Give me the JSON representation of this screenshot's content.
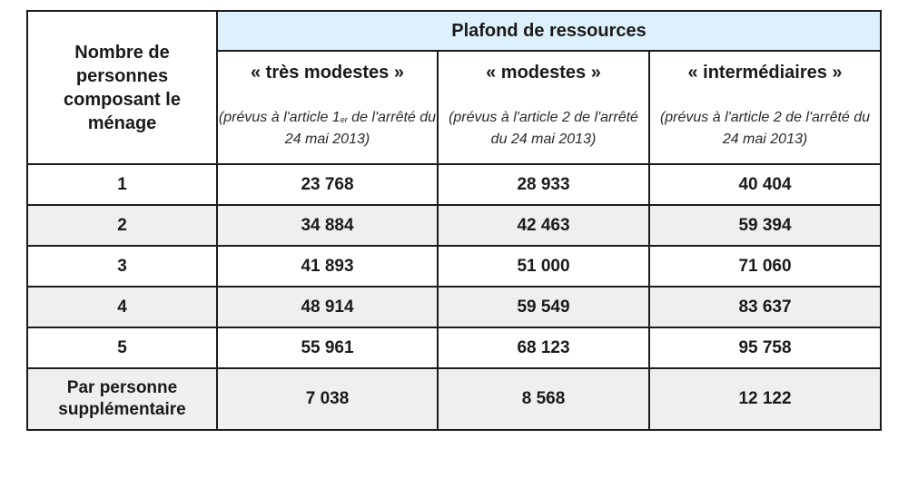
{
  "table": {
    "group_header": "Plafond de ressources",
    "row_header": "Nombre de personnes composant le ménage",
    "categories": [
      {
        "name": "« très modestes »",
        "ref_before_sup": "(prévus à l'article 1",
        "ref_sup": "er",
        "ref_after_sup": " de l'arrêté du 24 mai 2013)"
      },
      {
        "name": "« modestes »",
        "ref_before_sup": "(prévus à l'article 2 de l'arrêté du 24 mai 2013)",
        "ref_sup": "",
        "ref_after_sup": ""
      },
      {
        "name": "« intermédiaires »",
        "ref_before_sup": "(prévus à l'article 2 de l'arrêté du 24 mai 2013)",
        "ref_sup": "",
        "ref_after_sup": ""
      }
    ],
    "rows": [
      {
        "persons": "1",
        "values": [
          "23 768",
          "28 933",
          "40 404"
        ]
      },
      {
        "persons": "2",
        "values": [
          "34 884",
          "42 463",
          "59 394"
        ]
      },
      {
        "persons": "3",
        "values": [
          "41 893",
          "51 000",
          "71 060"
        ]
      },
      {
        "persons": "4",
        "values": [
          "48 914",
          "59 549",
          "83 637"
        ]
      },
      {
        "persons": "5",
        "values": [
          "55 961",
          "68 123",
          "95 758"
        ]
      },
      {
        "persons": "Par personne supplémentaire",
        "values": [
          "7 038",
          "8 568",
          "12 122"
        ]
      }
    ]
  },
  "colors": {
    "header_fill": "#dcf1fb",
    "row_shade": "#efefef",
    "border": "#1b1b1b"
  }
}
